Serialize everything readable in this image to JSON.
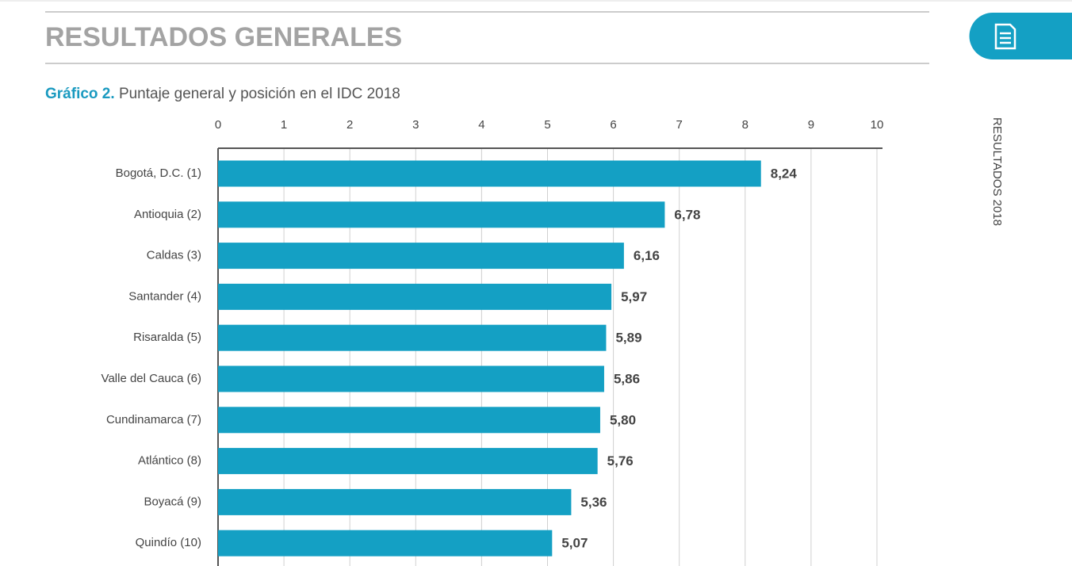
{
  "header": {
    "title": "RESULTADOS GENERALES",
    "side_label": "RESULTADOS 2018"
  },
  "chart_data": {
    "type": "bar",
    "orientation": "horizontal",
    "title_prefix": "Gráfico 2.",
    "title": "Puntaje general y posición en el IDC 2018",
    "categories": [
      "Bogotá, D.C. (1)",
      "Antioquia (2)",
      "Caldas (3)",
      "Santander (4)",
      "Risaralda (5)",
      "Valle del Cauca (6)",
      "Cundinamarca (7)",
      "Atlántico (8)",
      "Boyacá (9)",
      "Quindío (10)"
    ],
    "values": [
      8.24,
      6.78,
      6.16,
      5.97,
      5.89,
      5.86,
      5.8,
      5.76,
      5.36,
      5.07
    ],
    "value_labels": [
      "8,24",
      "6,78",
      "6,16",
      "5,97",
      "5,89",
      "5,86",
      "5,80",
      "5,76",
      "5,36",
      "5,07"
    ],
    "color": "#14a0c4",
    "xlim": [
      0,
      10
    ],
    "xticks": [
      0,
      1,
      2,
      3,
      4,
      5,
      6,
      7,
      8,
      9,
      10
    ],
    "grid": true
  }
}
